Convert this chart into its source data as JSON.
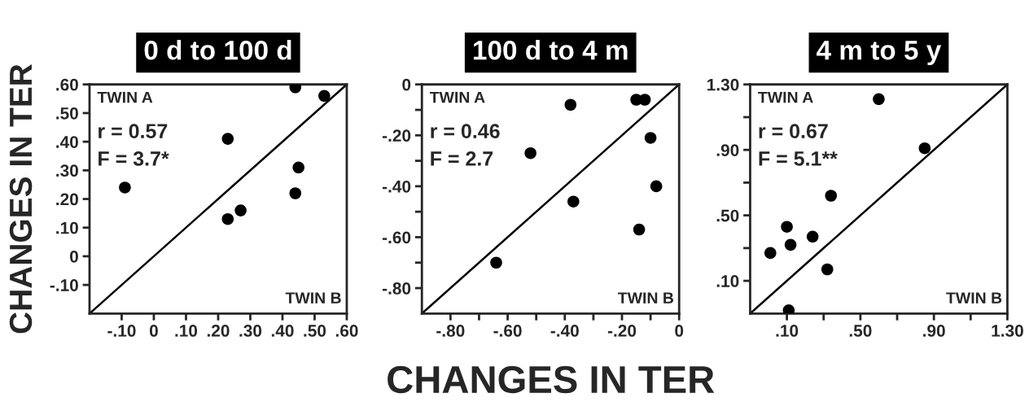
{
  "chart_data": [
    {
      "type": "scatter",
      "title": "0 d to 100 d",
      "ylabel": "CHANGES IN TER",
      "x": [
        -0.09,
        0.23,
        0.23,
        0.27,
        0.44,
        0.44,
        0.45,
        0.53
      ],
      "series": [
        {
          "color": "#000000",
          "marker": "circle",
          "values": [
            0.24,
            0.41,
            0.13,
            0.16,
            0.59,
            0.22,
            0.31,
            0.56
          ]
        },
        {
          "type": "line",
          "color": "#000000",
          "x": [
            -0.2,
            0.6
          ],
          "values": [
            -0.2,
            0.6
          ]
        }
      ],
      "xlim": [
        -0.2,
        0.6
      ],
      "ylim": [
        -0.2,
        0.6
      ],
      "xticks": [
        {
          "value": -0.1,
          "label": "-.10"
        },
        0,
        {
          "value": 0.1,
          "label": ".10"
        },
        {
          "value": 0.2,
          "label": ".20"
        },
        {
          "value": 0.3,
          "label": ".30"
        },
        {
          "value": 0.4,
          "label": ".40"
        },
        {
          "value": 0.5,
          "label": ".50"
        },
        {
          "value": 0.6,
          "label": ".60"
        }
      ],
      "yticks": [
        {
          "value": -0.1,
          "label": "-.10"
        },
        0,
        {
          "value": 0.1,
          "label": ".10"
        },
        {
          "value": 0.2,
          "label": ".20"
        },
        {
          "value": 0.3,
          "label": ".30"
        },
        {
          "value": 0.4,
          "label": ".40"
        },
        {
          "value": 0.5,
          "label": ".50"
        },
        {
          "value": 0.6,
          "label": ".60"
        }
      ],
      "grid": false,
      "legend": false,
      "annotations": [
        "TWIN A",
        "r = 0.57",
        "F = 3.7*",
        "TWIN B"
      ]
    },
    {
      "type": "scatter",
      "title": "100 d to 4 m",
      "xlabel": "CHANGES IN TER",
      "x": [
        -0.38,
        -0.52,
        -0.37,
        -0.64,
        -0.15,
        -0.12,
        -0.1,
        -0.08,
        -0.14
      ],
      "series": [
        {
          "color": "#000000",
          "marker": "circle",
          "values": [
            -0.08,
            -0.27,
            -0.46,
            -0.7,
            -0.06,
            -0.06,
            -0.21,
            -0.4,
            -0.57
          ]
        },
        {
          "type": "line",
          "color": "#000000",
          "x": [
            -0.9,
            0
          ],
          "values": [
            -0.9,
            0
          ]
        }
      ],
      "xlim": [
        -0.9,
        0
      ],
      "ylim": [
        -0.9,
        0
      ],
      "xticks": [
        {
          "value": -0.8,
          "label": "-.80"
        },
        {
          "value": -0.7,
          "label": null
        },
        {
          "value": -0.6,
          "label": "-.60"
        },
        {
          "value": -0.5,
          "label": null
        },
        {
          "value": -0.4,
          "label": "-.40"
        },
        {
          "value": -0.3,
          "label": null
        },
        {
          "value": -0.2,
          "label": "-.20"
        },
        {
          "value": -0.1,
          "label": null
        },
        0
      ],
      "yticks": [
        {
          "value": -0.8,
          "label": "-.80"
        },
        {
          "value": -0.7,
          "label": null
        },
        {
          "value": -0.6,
          "label": "-.60"
        },
        {
          "value": -0.5,
          "label": null
        },
        {
          "value": -0.4,
          "label": "-.40"
        },
        {
          "value": -0.3,
          "label": null
        },
        {
          "value": -0.2,
          "label": "-.20"
        },
        {
          "value": -0.1,
          "label": null
        },
        0
      ],
      "grid": false,
      "legend": false,
      "annotations": [
        "TWIN A",
        "r = 0.46",
        "F = 2.7",
        "TWIN B"
      ]
    },
    {
      "type": "scatter",
      "title": "4 m to 5 y",
      "x": [
        0.6,
        0.85,
        0.34,
        0.1,
        0.24,
        0.12,
        0.01,
        0.32,
        0.11
      ],
      "series": [
        {
          "color": "#000000",
          "marker": "circle",
          "values": [
            1.21,
            0.91,
            0.62,
            0.43,
            0.37,
            0.32,
            0.27,
            0.17,
            -0.08
          ]
        },
        {
          "type": "line",
          "color": "#000000",
          "x": [
            -0.1,
            1.3
          ],
          "values": [
            -0.1,
            1.3
          ]
        }
      ],
      "xlim": [
        -0.1,
        1.3
      ],
      "ylim": [
        -0.1,
        1.3
      ],
      "xticks": [
        {
          "value": 0.1,
          "label": ".10"
        },
        {
          "value": 0.3,
          "label": null
        },
        {
          "value": 0.5,
          "label": ".50"
        },
        {
          "value": 0.7,
          "label": null
        },
        {
          "value": 0.9,
          "label": ".90"
        },
        {
          "value": 1.1,
          "label": null
        },
        {
          "value": 1.3,
          "label": "1.30"
        }
      ],
      "yticks": [
        {
          "value": 0.1,
          "label": ".10"
        },
        {
          "value": 0.3,
          "label": null
        },
        {
          "value": 0.5,
          "label": ".50"
        },
        {
          "value": 0.7,
          "label": null
        },
        {
          "value": 0.9,
          "label": ".90"
        },
        {
          "value": 1.1,
          "label": null
        },
        {
          "value": 1.3,
          "label": "1.30"
        }
      ],
      "grid": false,
      "legend": false,
      "annotations": [
        "TWIN A",
        "r = 0.67",
        "F = 5.1**",
        "TWIN B"
      ]
    }
  ]
}
